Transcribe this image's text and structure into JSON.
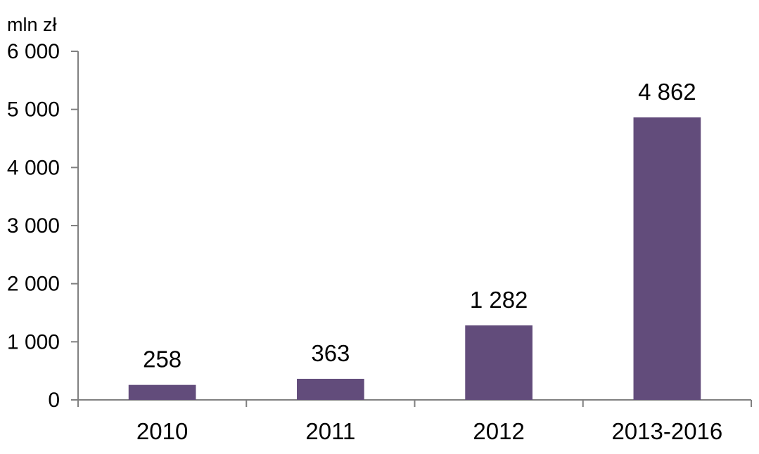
{
  "chart_data": {
    "type": "bar",
    "unit_label": "mln zł",
    "categories": [
      "2010",
      "2011",
      "2012",
      "2013-2016"
    ],
    "values": [
      258,
      363,
      1282,
      4862
    ],
    "value_labels": [
      "258",
      "363",
      "1 282",
      "4 862"
    ],
    "yticks": [
      0,
      1000,
      2000,
      3000,
      4000,
      5000,
      6000
    ],
    "ytick_labels": [
      "0",
      "1 000",
      "2 000",
      "3 000",
      "4 000",
      "5 000",
      "6 000"
    ],
    "ylim": [
      0,
      6000
    ],
    "grid": false,
    "legend": "none",
    "bar_color": "#624C7B",
    "axis_color": "#808080"
  }
}
